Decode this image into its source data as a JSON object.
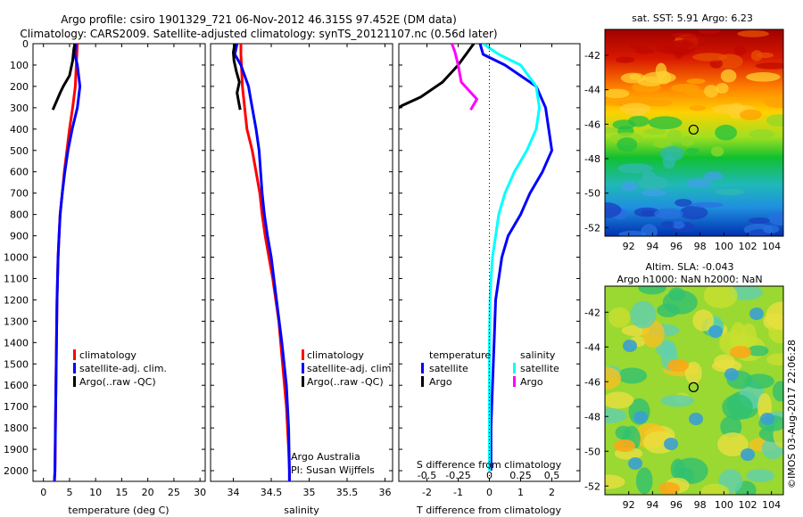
{
  "title_line1": "Argo profile: csiro 1901329_721 06-Nov-2012 46.315S 97.452E (DM data)",
  "title_line2": "Climatology: CARS2009. Satellite-adjusted climatology: synTS_20121107.nc (0.56d later)",
  "side_text": "©IMOS 03-Aug-2017 22:06:28",
  "colors": {
    "climatology": "#ff0000",
    "satellite": "#0000ff",
    "argo": "#000000",
    "sal_satellite": "#00ffff",
    "sal_argo": "#ff00ff"
  },
  "chart_data": [
    {
      "id": "temperature",
      "type": "line",
      "xlabel": "temperature (deg C)",
      "ylabel": "",
      "xlim": [
        -2,
        31
      ],
      "ylim": [
        2050,
        0
      ],
      "xticks": [
        "0",
        "5",
        "10",
        "15",
        "20",
        "25",
        "30"
      ],
      "yticks": [
        "0",
        "100",
        "200",
        "300",
        "400",
        "500",
        "600",
        "700",
        "800",
        "900",
        "1000",
        "1100",
        "1200",
        "1300",
        "1400",
        "1500",
        "1600",
        "1700",
        "1800",
        "1900",
        "2000"
      ],
      "legend": [
        "climatology",
        "satellite-adj. clim.",
        "Argo(..raw -QC)"
      ],
      "annotation": "",
      "series": [
        {
          "name": "climatology",
          "color": "#ff0000",
          "x": [
            6.5,
            6.4,
            6.3,
            6.1,
            5.6,
            5.0,
            4.5,
            4.0,
            3.6,
            3.2,
            3.0,
            2.8,
            2.6,
            2.5,
            2.4,
            2.3,
            2.2,
            2.1
          ],
          "y": [
            0,
            50,
            100,
            200,
            300,
            400,
            500,
            600,
            700,
            800,
            900,
            1000,
            1200,
            1400,
            1600,
            1800,
            2000,
            2050
          ]
        },
        {
          "name": "satellite-adj. clim.",
          "color": "#0000ff",
          "x": [
            6.2,
            6.0,
            6.5,
            7.0,
            6.5,
            5.5,
            4.7,
            4.1,
            3.6,
            3.2,
            3.0,
            2.8,
            2.6,
            2.5,
            2.4,
            2.3,
            2.2,
            2.1
          ],
          "y": [
            0,
            50,
            100,
            200,
            300,
            400,
            500,
            600,
            700,
            800,
            900,
            1000,
            1200,
            1400,
            1600,
            1800,
            2000,
            2050
          ]
        },
        {
          "name": "Argo(..raw -QC)",
          "color": "#000000",
          "x": [
            6.0,
            5.8,
            5.6,
            5.0,
            3.8,
            3.2,
            2.5,
            1.8
          ],
          "y": [
            0,
            30,
            80,
            150,
            200,
            230,
            270,
            310
          ]
        }
      ]
    },
    {
      "id": "salinity",
      "type": "line",
      "xlabel": "salinity",
      "ylabel": "",
      "xlim": [
        33.7,
        36.1
      ],
      "ylim": [
        2050,
        0
      ],
      "xticks": [
        "34",
        "34.5",
        "35",
        "35.5",
        "36"
      ],
      "legend": [
        "climatology",
        "satellite-adj. clim.",
        "Argo(..raw -QC)"
      ],
      "annotation_line1": "Argo Australia",
      "annotation_line2": "PI: Susan Wijffels",
      "series": [
        {
          "name": "climatology",
          "color": "#ff0000",
          "x": [
            34.1,
            34.1,
            34.12,
            34.15,
            34.18,
            34.25,
            34.3,
            34.35,
            34.38,
            34.42,
            34.47,
            34.52,
            34.6,
            34.65,
            34.7,
            34.73,
            34.74,
            34.74
          ],
          "y": [
            0,
            50,
            200,
            300,
            400,
            500,
            600,
            700,
            800,
            900,
            1000,
            1100,
            1300,
            1500,
            1700,
            1900,
            2000,
            2050
          ]
        },
        {
          "name": "satellite-adj. clim.",
          "color": "#0000ff",
          "x": [
            34.05,
            34.02,
            34.1,
            34.2,
            34.25,
            34.3,
            34.34,
            34.36,
            34.38,
            34.41,
            34.45,
            34.5,
            34.57,
            34.64,
            34.7,
            34.73,
            34.74,
            34.74
          ],
          "y": [
            0,
            50,
            100,
            200,
            300,
            400,
            500,
            600,
            700,
            800,
            900,
            1000,
            1200,
            1400,
            1600,
            1800,
            2000,
            2050
          ]
        },
        {
          "name": "Argo(..raw -QC)",
          "color": "#000000",
          "x": [
            34.02,
            34.0,
            34.01,
            34.04,
            34.08,
            34.05,
            34.07,
            34.09
          ],
          "y": [
            0,
            40,
            80,
            130,
            180,
            230,
            270,
            310
          ]
        }
      ]
    },
    {
      "id": "difference",
      "type": "line",
      "xlabel": "T difference from climatology",
      "xlabel_top": "S difference from climatology",
      "ylabel": "",
      "xlim": [
        -2.9,
        2.9
      ],
      "ylim": [
        2050,
        0
      ],
      "xticks": [
        "-2",
        "-1",
        "0",
        "1",
        "2"
      ],
      "s_ticks": [
        "-0.5",
        "-0.25",
        "0",
        "0.25",
        "0.5"
      ],
      "legend_title_t": "temperature",
      "legend_title_s": "salinity",
      "legend_t": [
        "satellite",
        "Argo"
      ],
      "legend_s": [
        "satellite",
        "Argo"
      ],
      "series": [
        {
          "name": "T satellite",
          "color": "#0000ff",
          "x": [
            -0.3,
            -0.2,
            0.5,
            1.5,
            1.8,
            1.9,
            2.0,
            1.7,
            1.3,
            1.0,
            0.6,
            0.4,
            0.3,
            0.2,
            0.15,
            0.1,
            0.05,
            0.05
          ],
          "y": [
            0,
            50,
            100,
            200,
            300,
            400,
            500,
            600,
            700,
            800,
            900,
            1000,
            1100,
            1200,
            1400,
            1600,
            1800,
            2000
          ]
        },
        {
          "name": "T Argo",
          "color": "#000000",
          "x": [
            -0.5,
            -0.7,
            -1.0,
            -1.5,
            -2.2,
            -2.8,
            -3.0
          ],
          "y": [
            0,
            40,
            100,
            180,
            250,
            290,
            310
          ]
        },
        {
          "name": "S satellite",
          "color": "#00ffff",
          "x": [
            -0.2,
            0.3,
            1.0,
            1.5,
            1.6,
            1.5,
            1.2,
            0.8,
            0.5,
            0.3,
            0.2,
            0.1,
            0.05,
            0.02,
            0.0,
            0.0,
            0.0,
            0.0
          ],
          "y": [
            0,
            50,
            100,
            200,
            300,
            400,
            500,
            600,
            700,
            800,
            900,
            1000,
            1100,
            1200,
            1400,
            1600,
            1800,
            2000
          ]
        },
        {
          "name": "S Argo",
          "color": "#ff00ff",
          "x": [
            -1.2,
            -1.1,
            -1.0,
            -0.9,
            -0.4,
            -0.6
          ],
          "y": [
            0,
            40,
            100,
            180,
            260,
            310
          ]
        }
      ]
    },
    {
      "id": "sst_map",
      "type": "heatmap",
      "title": "sat. SST: 5.91  Argo: 6.23",
      "xlim": [
        90,
        105
      ],
      "ylim": [
        -52.5,
        -40.5
      ],
      "xticks": [
        "92",
        "94",
        "96",
        "98",
        "100",
        "102",
        "104"
      ],
      "yticks": [
        "-42",
        "-44",
        "-46",
        "-48",
        "-50",
        "-52"
      ],
      "marker": {
        "lon": 97.452,
        "lat": -46.315
      }
    },
    {
      "id": "sla_map",
      "type": "heatmap",
      "title_line1": "Altim. SLA: -0.043",
      "title_line2": "Argo h1000: NaN h2000: NaN",
      "xlim": [
        90,
        105
      ],
      "ylim": [
        -52.5,
        -40.5
      ],
      "xticks": [
        "92",
        "94",
        "96",
        "98",
        "100",
        "102",
        "104"
      ],
      "yticks": [
        "-42",
        "-44",
        "-46",
        "-48",
        "-50",
        "-52"
      ],
      "marker": {
        "lon": 97.452,
        "lat": -46.315
      }
    }
  ]
}
